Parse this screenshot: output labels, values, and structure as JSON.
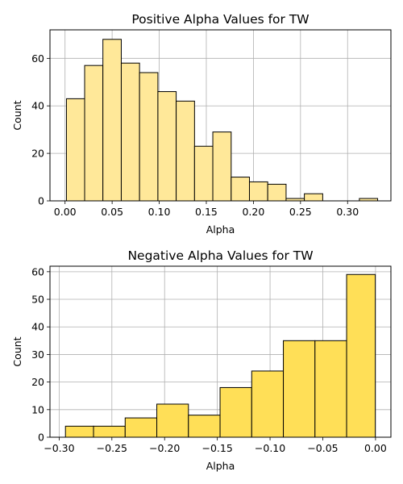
{
  "chart_data": [
    {
      "type": "bar",
      "title": "Positive Alpha Values for TW",
      "xlabel": "Alpha",
      "ylabel": "Count",
      "bar_color": "#FFE899",
      "edge_color": "#000000",
      "grid": true,
      "xlim": [
        -0.016,
        0.346
      ],
      "ylim": [
        0,
        72
      ],
      "xticks": [
        0.0,
        0.05,
        0.1,
        0.15,
        0.2,
        0.25,
        0.3
      ],
      "xtick_labels": [
        "0.00",
        "0.05",
        "0.10",
        "0.15",
        "0.20",
        "0.25",
        "0.30"
      ],
      "yticks": [
        0,
        20,
        40,
        60
      ],
      "ytick_labels": [
        "0",
        "20",
        "40",
        "60"
      ],
      "bins": [
        {
          "x0": 0.0015,
          "x1": 0.0208,
          "count": 43
        },
        {
          "x0": 0.0208,
          "x1": 0.0402,
          "count": 57
        },
        {
          "x0": 0.0402,
          "x1": 0.0597,
          "count": 68
        },
        {
          "x0": 0.0597,
          "x1": 0.0791,
          "count": 58
        },
        {
          "x0": 0.0791,
          "x1": 0.0986,
          "count": 54
        },
        {
          "x0": 0.0986,
          "x1": 0.118,
          "count": 46
        },
        {
          "x0": 0.118,
          "x1": 0.1375,
          "count": 42
        },
        {
          "x0": 0.1375,
          "x1": 0.1569,
          "count": 23
        },
        {
          "x0": 0.1569,
          "x1": 0.1764,
          "count": 29
        },
        {
          "x0": 0.1764,
          "x1": 0.1958,
          "count": 10
        },
        {
          "x0": 0.1958,
          "x1": 0.2152,
          "count": 8
        },
        {
          "x0": 0.2152,
          "x1": 0.2347,
          "count": 7
        },
        {
          "x0": 0.2347,
          "x1": 0.2541,
          "count": 1
        },
        {
          "x0": 0.2541,
          "x1": 0.2736,
          "count": 3
        },
        {
          "x0": 0.2736,
          "x1": 0.293,
          "count": 0
        },
        {
          "x0": 0.293,
          "x1": 0.3125,
          "count": 0
        },
        {
          "x0": 0.3125,
          "x1": 0.3319,
          "count": 1
        }
      ]
    },
    {
      "type": "bar",
      "title": "Negative Alpha Values for TW",
      "xlabel": "Alpha",
      "ylabel": "Count",
      "bar_color": "#FFDF57",
      "edge_color": "#000000",
      "grid": true,
      "xlim": [
        -0.3087,
        0.0146
      ],
      "ylim": [
        0,
        62
      ],
      "xticks": [
        -0.3,
        -0.25,
        -0.2,
        -0.15,
        -0.1,
        -0.05,
        0.0
      ],
      "xtick_labels": [
        "−0.30",
        "−0.25",
        "−0.20",
        "−0.15",
        "−0.10",
        "−0.05",
        "0.00"
      ],
      "yticks": [
        0,
        10,
        20,
        30,
        40,
        50,
        60
      ],
      "ytick_labels": [
        "0",
        "10",
        "20",
        "30",
        "40",
        "50",
        "60"
      ],
      "bins": [
        {
          "x0": -0.294,
          "x1": -0.2674,
          "count": 4
        },
        {
          "x0": -0.2674,
          "x1": -0.2374,
          "count": 4
        },
        {
          "x0": -0.2374,
          "x1": -0.2074,
          "count": 7
        },
        {
          "x0": -0.2074,
          "x1": -0.1774,
          "count": 12
        },
        {
          "x0": -0.1774,
          "x1": -0.1474,
          "count": 8
        },
        {
          "x0": -0.1474,
          "x1": -0.1174,
          "count": 18
        },
        {
          "x0": -0.1174,
          "x1": -0.0874,
          "count": 24
        },
        {
          "x0": -0.0874,
          "x1": -0.0574,
          "count": 35
        },
        {
          "x0": -0.0574,
          "x1": -0.0274,
          "count": 35
        },
        {
          "x0": -0.0274,
          "x1": -0.0002,
          "count": 59
        }
      ]
    }
  ]
}
